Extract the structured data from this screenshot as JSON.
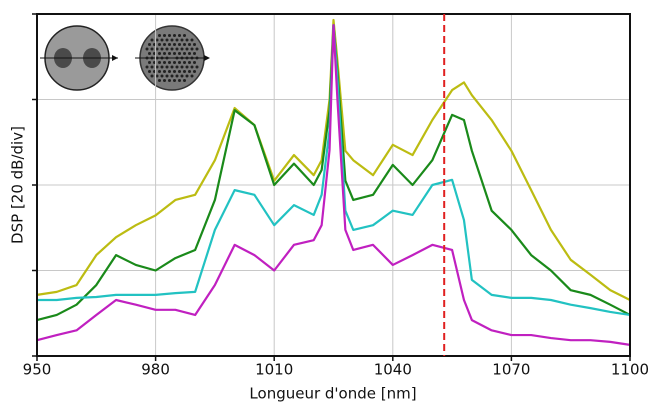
{
  "chart_data": {
    "type": "line",
    "xlabel": "Longueur d'onde [nm]",
    "ylabel": "DSP [20 dB/div]",
    "x": [
      950,
      955,
      960,
      965,
      970,
      975,
      980,
      985,
      990,
      995,
      1000,
      1005,
      1010,
      1015,
      1020,
      1022,
      1024,
      1025,
      1026,
      1028,
      1030,
      1035,
      1040,
      1045,
      1050,
      1055,
      1058,
      1060,
      1065,
      1070,
      1075,
      1080,
      1085,
      1090,
      1095,
      1100
    ],
    "series": [
      {
        "color": "#bcbc12",
        "values": [
          14.3,
          15,
          16.6,
          23.6,
          27.8,
          30.6,
          32.9,
          36.5,
          37.7,
          45.8,
          58,
          54,
          41,
          47,
          42.3,
          45.8,
          60,
          78.6,
          69,
          48,
          45.8,
          42.3,
          49.4,
          47,
          55.2,
          62.2,
          64,
          61,
          55.2,
          48,
          38.8,
          29.5,
          22.5,
          19,
          15.4,
          13.1
        ]
      },
      {
        "color": "#1a8a1a",
        "values": [
          8.4,
          9.6,
          12,
          16.6,
          23.6,
          21.3,
          20,
          22.9,
          24.8,
          36.5,
          57.5,
          54,
          40,
          45,
          40,
          43.5,
          57.5,
          77.4,
          66.5,
          41,
          36.5,
          37.7,
          44.7,
          40,
          45.8,
          56.4,
          55.2,
          48,
          34,
          29.5,
          23.6,
          20,
          15.4,
          14.3,
          12,
          9.6
        ]
      },
      {
        "color": "#22c2c2",
        "values": [
          13.1,
          13.1,
          13.6,
          13.8,
          14.3,
          14.3,
          14.3,
          14.7,
          15,
          29.5,
          38.8,
          37.7,
          30.6,
          35.3,
          33,
          37.7,
          52.9,
          77.4,
          64.6,
          34,
          29.5,
          30.6,
          34,
          33,
          40,
          41.2,
          31.8,
          17.8,
          14.3,
          13.6,
          13.6,
          13.1,
          12,
          11.2,
          10.3,
          9.6
        ]
      },
      {
        "color": "#c020c0",
        "values": [
          3.7,
          4.9,
          6,
          9.6,
          13.1,
          12,
          10.8,
          10.8,
          9.6,
          16.6,
          26,
          23.6,
          20,
          26,
          27.1,
          30.6,
          48.2,
          77.4,
          59.9,
          29.5,
          24.8,
          26,
          21.3,
          23.6,
          26,
          24.8,
          13.1,
          8.4,
          6,
          4.9,
          4.9,
          4.2,
          3.7,
          3.7,
          3.3,
          2.6
        ]
      }
    ],
    "xlim": [
      950,
      1100
    ],
    "xticks": [
      950,
      980,
      1010,
      1040,
      1070,
      1100
    ],
    "ylim": [
      0,
      80
    ],
    "yticks": [
      0,
      20,
      40,
      60,
      80
    ],
    "ytick_labels": false,
    "grid": true,
    "vline": {
      "x": 1053,
      "color": "#e02020",
      "style": "dashed"
    }
  }
}
